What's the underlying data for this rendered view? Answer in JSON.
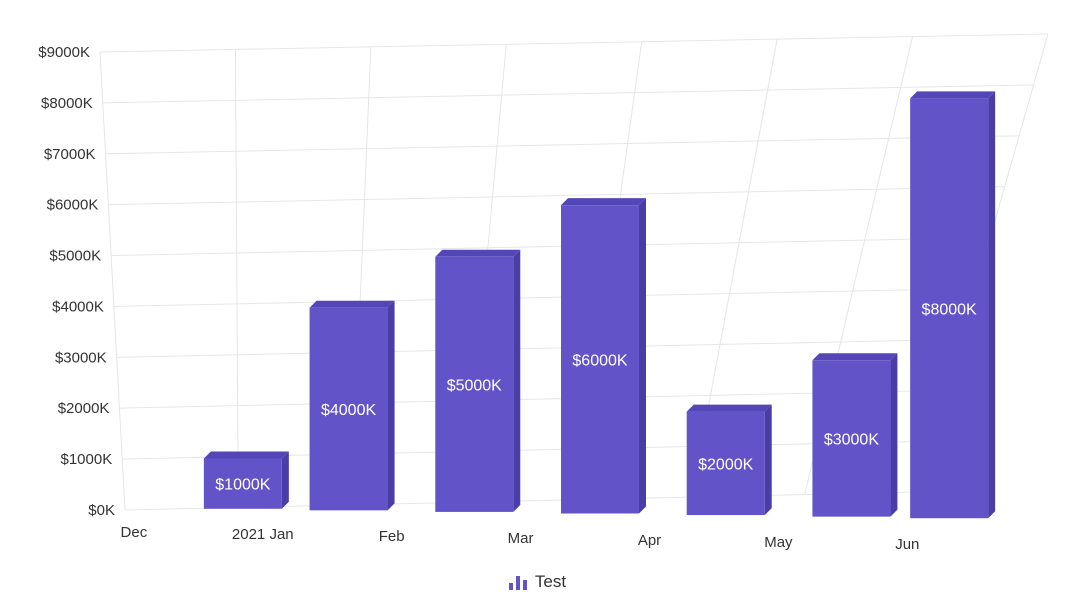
{
  "chart_data": {
    "type": "bar",
    "categories": [
      "Dec",
      "2021 Jan",
      "Feb",
      "Mar",
      "Apr",
      "May",
      "Jun"
    ],
    "series": [
      {
        "name": "Test",
        "values": [
          1000,
          4000,
          5000,
          6000,
          2000,
          3000,
          8000
        ]
      }
    ],
    "data_labels": [
      "$1000K",
      "$4000K",
      "$5000K",
      "$6000K",
      "$2000K",
      "$3000K",
      "$8000K"
    ],
    "y_ticks": [
      0,
      1000,
      2000,
      3000,
      4000,
      5000,
      6000,
      7000,
      8000,
      9000
    ],
    "y_tick_labels": [
      "$0K",
      "$1000K",
      "$2000K",
      "$3000K",
      "$4000K",
      "$5000K",
      "$6000K",
      "$7000K",
      "$8000K",
      "$9000K"
    ],
    "ylim": [
      0,
      9000
    ],
    "grid": true,
    "legend_position": "bottom-center",
    "style": "3d",
    "colors": {
      "bar": "#6353c9",
      "bar_top": "#5546b8",
      "bar_side": "#4a3da5",
      "grid": "#e6e6e6"
    }
  }
}
